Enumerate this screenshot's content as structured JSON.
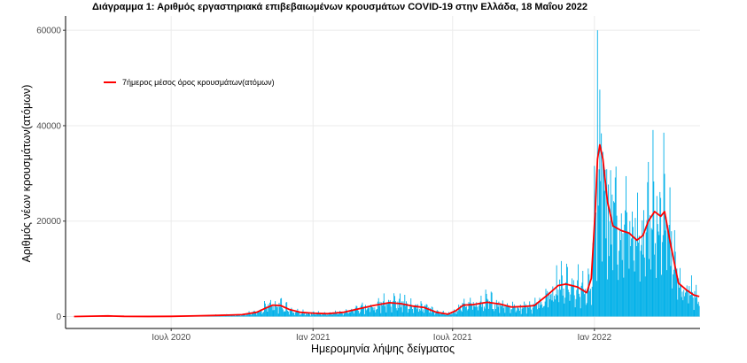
{
  "chart_data": {
    "type": "bar",
    "title": "Διάγραμμα 1: Αριθμός εργαστηριακά επιβεβαιωμένων κρουσμάτων COVID-19 στην Ελλάδα, 18 Μαΐου 2022",
    "xlabel": "Ημερομηνία λήψης δείγματος",
    "ylabel": "Αριθμός νέων κρουσμάτων(ατόμων)",
    "xlim": [
      "2020-02-15",
      "2022-05-18"
    ],
    "ylim": [
      -2500,
      63000
    ],
    "yticks": [
      0,
      20000,
      40000,
      60000
    ],
    "ytick_labels": [
      "0",
      "20000",
      "40000",
      "60000"
    ],
    "xticks": [
      "2020-07-01",
      "2021-01-01",
      "2021-07-01",
      "2022-01-01"
    ],
    "xtick_labels": [
      "Ιουλ 2020",
      "Ιαν 2021",
      "Ιουλ 2021",
      "Ιαν 2022"
    ],
    "grid": true,
    "legend_position": "top-left",
    "bar_color": "#00b0e8",
    "line_color": "#ff0000",
    "series": [
      {
        "kind": "line",
        "name": "7ήμερος μέσος όρος κρουσμάτων(ατόμων)",
        "points": [
          [
            "2020-02-26",
            0
          ],
          [
            "2020-03-20",
            80
          ],
          [
            "2020-04-10",
            130
          ],
          [
            "2020-05-01",
            40
          ],
          [
            "2020-06-01",
            20
          ],
          [
            "2020-07-01",
            40
          ],
          [
            "2020-08-01",
            150
          ],
          [
            "2020-09-01",
            250
          ],
          [
            "2020-10-01",
            400
          ],
          [
            "2020-10-20",
            900
          ],
          [
            "2020-11-01",
            1800
          ],
          [
            "2020-11-10",
            2400
          ],
          [
            "2020-11-20",
            2300
          ],
          [
            "2020-12-01",
            1500
          ],
          [
            "2020-12-15",
            900
          ],
          [
            "2021-01-01",
            700
          ],
          [
            "2021-01-20",
            600
          ],
          [
            "2021-02-10",
            900
          ],
          [
            "2021-03-01",
            1600
          ],
          [
            "2021-03-20",
            2300
          ],
          [
            "2021-04-10",
            2900
          ],
          [
            "2021-04-25",
            2700
          ],
          [
            "2021-05-10",
            2200
          ],
          [
            "2021-05-25",
            1900
          ],
          [
            "2021-06-10",
            900
          ],
          [
            "2021-06-25",
            500
          ],
          [
            "2021-07-05",
            1200
          ],
          [
            "2021-07-15",
            2400
          ],
          [
            "2021-07-28",
            2500
          ],
          [
            "2021-08-15",
            3000
          ],
          [
            "2021-09-01",
            2600
          ],
          [
            "2021-09-15",
            2000
          ],
          [
            "2021-10-01",
            2100
          ],
          [
            "2021-10-15",
            2300
          ],
          [
            "2021-11-01",
            4500
          ],
          [
            "2021-11-15",
            6500
          ],
          [
            "2021-11-25",
            6800
          ],
          [
            "2021-12-10",
            6200
          ],
          [
            "2021-12-22",
            5000
          ],
          [
            "2021-12-28",
            8000
          ],
          [
            "2022-01-02",
            22000
          ],
          [
            "2022-01-05",
            33000
          ],
          [
            "2022-01-08",
            36000
          ],
          [
            "2022-01-12",
            33000
          ],
          [
            "2022-01-18",
            24000
          ],
          [
            "2022-01-25",
            19000
          ],
          [
            "2022-02-05",
            18000
          ],
          [
            "2022-02-15",
            17500
          ],
          [
            "2022-02-25",
            16000
          ],
          [
            "2022-03-05",
            17000
          ],
          [
            "2022-03-12",
            20000
          ],
          [
            "2022-03-20",
            22000
          ],
          [
            "2022-03-28",
            21000
          ],
          [
            "2022-04-02",
            22000
          ],
          [
            "2022-04-10",
            15000
          ],
          [
            "2022-04-20",
            7000
          ],
          [
            "2022-05-01",
            5500
          ],
          [
            "2022-05-10",
            4500
          ],
          [
            "2022-05-17",
            4200
          ]
        ]
      }
    ],
    "daily_bar_peak": {
      "date": "2022-01-05",
      "value": 60000
    }
  }
}
